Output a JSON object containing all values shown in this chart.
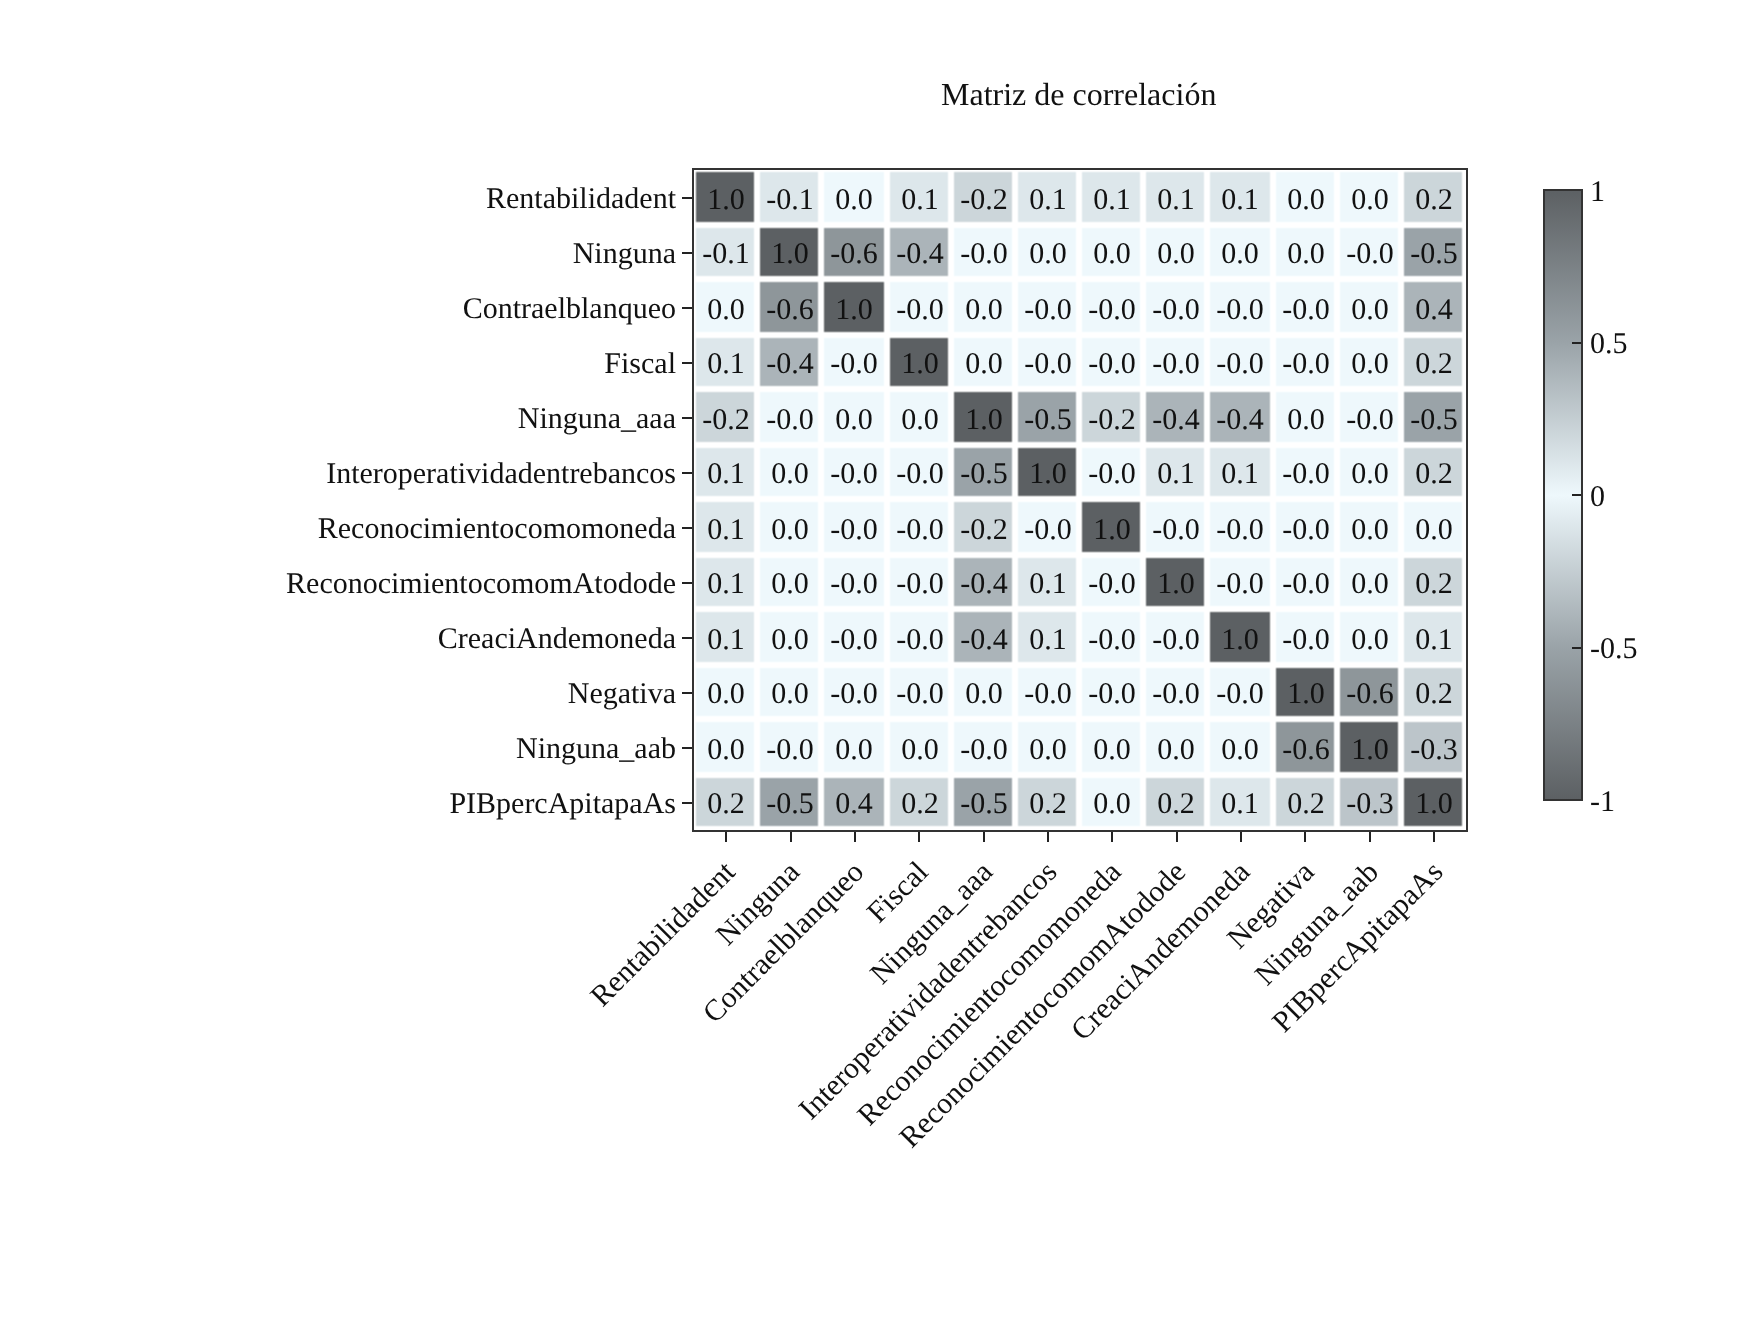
{
  "chart_data": {
    "type": "heatmap",
    "title": "Matriz de correlación",
    "categories": [
      "Rentabilidadent",
      "Ninguna",
      "Contraelblanqueo",
      "Fiscal",
      "Ninguna_aaa",
      "Interoperatividadentrebancos",
      "Reconocimientocomomoneda",
      "ReconocimientocomomAtodode",
      "CreaciAndemoneda",
      "Negativa",
      "Ninguna_aab",
      "PIBpercApitapaAs"
    ],
    "y_categories": [
      "Rentabilidadent",
      "Ninguna",
      "Contraelblanqueo",
      "Fiscal",
      "Ninguna_aaa",
      "Interoperatividadentrebancos",
      "Reconocimientocomomoneda",
      "ReconocimientocomomAtodode",
      "CreaciAndemoneda",
      "Negativa",
      "Ninguna_aab",
      "PIBpercApitapaAs"
    ],
    "cells": [
      [
        1.0,
        -0.1,
        0.0,
        0.1,
        -0.2,
        0.1,
        0.1,
        0.1,
        0.1,
        0.0,
        0.0,
        0.2
      ],
      [
        -0.1,
        1.0,
        -0.6,
        -0.4,
        0.0,
        0.0,
        0.0,
        0.0,
        0.0,
        0.0,
        0.0,
        -0.5
      ],
      [
        0.0,
        -0.6,
        1.0,
        0.0,
        0.0,
        0.0,
        0.0,
        0.0,
        0.0,
        0.0,
        0.0,
        0.4
      ],
      [
        0.1,
        -0.4,
        0.0,
        1.0,
        0.0,
        0.0,
        0.0,
        0.0,
        0.0,
        0.0,
        0.0,
        0.2
      ],
      [
        -0.2,
        0.0,
        0.0,
        0.0,
        1.0,
        -0.5,
        -0.2,
        -0.4,
        -0.4,
        0.0,
        0.0,
        -0.5
      ],
      [
        0.1,
        0.0,
        0.0,
        0.0,
        -0.5,
        1.0,
        0.0,
        0.1,
        0.1,
        0.0,
        0.0,
        0.2
      ],
      [
        0.1,
        0.0,
        0.0,
        0.0,
        -0.2,
        0.0,
        1.0,
        0.0,
        0.0,
        0.0,
        0.0,
        0.0
      ],
      [
        0.1,
        0.0,
        0.0,
        0.0,
        -0.4,
        0.1,
        0.0,
        1.0,
        0.0,
        0.0,
        0.0,
        0.2
      ],
      [
        0.1,
        0.0,
        0.0,
        0.0,
        -0.4,
        0.1,
        0.0,
        0.0,
        1.0,
        0.0,
        0.0,
        0.1
      ],
      [
        0.0,
        0.0,
        0.0,
        0.0,
        0.0,
        0.0,
        0.0,
        0.0,
        0.0,
        1.0,
        -0.6,
        0.2
      ],
      [
        0.0,
        0.0,
        0.0,
        0.0,
        0.0,
        0.0,
        0.0,
        0.0,
        0.0,
        -0.6,
        1.0,
        -0.3
      ],
      [
        0.2,
        -0.5,
        0.4,
        0.2,
        -0.5,
        0.2,
        0.0,
        0.2,
        0.1,
        0.2,
        -0.3,
        1.0
      ]
    ],
    "cell_labels": [
      [
        "1.0",
        "-0.1",
        "0.0",
        "0.1",
        "-0.2",
        "0.1",
        "0.1",
        "0.1",
        "0.1",
        "0.0",
        "0.0",
        "0.2"
      ],
      [
        "-0.1",
        "1.0",
        "-0.6",
        "-0.4",
        "-0.0",
        "0.0",
        "0.0",
        "0.0",
        "0.0",
        "0.0",
        "-0.0",
        "-0.5"
      ],
      [
        "0.0",
        "-0.6",
        "1.0",
        "-0.0",
        "0.0",
        "-0.0",
        "-0.0",
        "-0.0",
        "-0.0",
        "-0.0",
        "0.0",
        "0.4"
      ],
      [
        "0.1",
        "-0.4",
        "-0.0",
        "1.0",
        "0.0",
        "-0.0",
        "-0.0",
        "-0.0",
        "-0.0",
        "-0.0",
        "0.0",
        "0.2"
      ],
      [
        "-0.2",
        "-0.0",
        "0.0",
        "0.0",
        "1.0",
        "-0.5",
        "-0.2",
        "-0.4",
        "-0.4",
        "0.0",
        "-0.0",
        "-0.5"
      ],
      [
        "0.1",
        "0.0",
        "-0.0",
        "-0.0",
        "-0.5",
        "1.0",
        "-0.0",
        "0.1",
        "0.1",
        "-0.0",
        "0.0",
        "0.2"
      ],
      [
        "0.1",
        "0.0",
        "-0.0",
        "-0.0",
        "-0.2",
        "-0.0",
        "1.0",
        "-0.0",
        "-0.0",
        "-0.0",
        "0.0",
        "0.0"
      ],
      [
        "0.1",
        "0.0",
        "-0.0",
        "-0.0",
        "-0.4",
        "0.1",
        "-0.0",
        "1.0",
        "-0.0",
        "-0.0",
        "0.0",
        "0.2"
      ],
      [
        "0.1",
        "0.0",
        "-0.0",
        "-0.0",
        "-0.4",
        "0.1",
        "-0.0",
        "-0.0",
        "1.0",
        "-0.0",
        "0.0",
        "0.1"
      ],
      [
        "0.0",
        "0.0",
        "-0.0",
        "-0.0",
        "0.0",
        "-0.0",
        "-0.0",
        "-0.0",
        "-0.0",
        "1.0",
        "-0.6",
        "0.2"
      ],
      [
        "0.0",
        "-0.0",
        "0.0",
        "0.0",
        "-0.0",
        "0.0",
        "0.0",
        "0.0",
        "0.0",
        "-0.6",
        "1.0",
        "-0.3"
      ],
      [
        "0.2",
        "-0.5",
        "0.4",
        "0.2",
        "-0.5",
        "0.2",
        "0.0",
        "0.2",
        "0.1",
        "0.2",
        "-0.3",
        "1.0"
      ]
    ],
    "clim": [
      -1,
      1
    ],
    "cticks": [
      -1,
      -0.5,
      0,
      0.5,
      1
    ]
  }
}
